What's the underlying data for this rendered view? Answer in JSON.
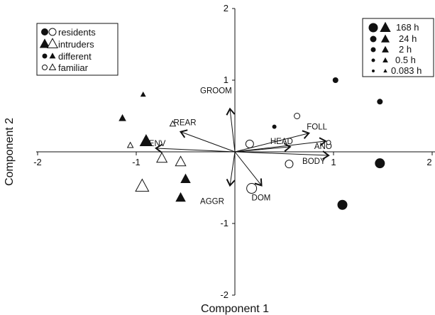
{
  "chart_data": {
    "type": "scatter",
    "title": "",
    "xlabel": "Component 1",
    "ylabel": "Component 2",
    "xlim": [
      -2,
      2
    ],
    "ylim": [
      -2,
      2
    ],
    "x_ticks": [
      -2,
      -1,
      1,
      2
    ],
    "y_ticks": [
      2,
      1,
      -1,
      -2
    ],
    "x_tick_labels": [
      "-2",
      "-1",
      "1",
      "2"
    ],
    "y_tick_labels": [
      "2",
      "1",
      "-1",
      "-2"
    ],
    "grid": false,
    "legends": {
      "group": {
        "position": "top-left",
        "entries": [
          {
            "label": "residents",
            "symbols": [
              "filled-circle",
              "open-circle"
            ]
          },
          {
            "label": "intruders",
            "symbols": [
              "filled-triangle",
              "open-triangle"
            ]
          },
          {
            "label": "different",
            "symbols": [
              "filled-circle",
              "filled-triangle"
            ]
          },
          {
            "label": "familiar",
            "symbols": [
              "open-circle",
              "open-triangle"
            ]
          }
        ]
      },
      "time": {
        "position": "top-right",
        "entries": [
          {
            "label": "168 h",
            "size": 5
          },
          {
            "label": "24 h",
            "size": 4
          },
          {
            "label": "2 h",
            "size": 3
          },
          {
            "label": "0.5 h",
            "size": 2
          },
          {
            "label": "0.083 h",
            "size": 1
          }
        ]
      }
    },
    "vectors": [
      {
        "name": "GROOM",
        "x": -0.05,
        "y": 0.6
      },
      {
        "name": "REAR",
        "x": -0.55,
        "y": 0.28
      },
      {
        "name": "ENV",
        "x": -0.8,
        "y": 0.05
      },
      {
        "name": "FOLL",
        "x": 0.75,
        "y": 0.26
      },
      {
        "name": "HEAD",
        "x": 0.56,
        "y": 0.07
      },
      {
        "name": "ANO",
        "x": 0.92,
        "y": 0.15
      },
      {
        "name": "BODY",
        "x": 0.95,
        "y": -0.05
      },
      {
        "name": "AGGR",
        "x": -0.05,
        "y": -0.47
      },
      {
        "name": "DOM",
        "x": 0.27,
        "y": -0.47
      }
    ],
    "points": [
      {
        "x": 1.02,
        "y": 1.0,
        "group": "residents",
        "condition": "different",
        "time": "2 h"
      },
      {
        "x": 1.47,
        "y": 0.7,
        "group": "residents",
        "condition": "different",
        "time": "2 h"
      },
      {
        "x": 1.47,
        "y": -0.16,
        "group": "residents",
        "condition": "different",
        "time": "168 h"
      },
      {
        "x": 1.09,
        "y": -0.74,
        "group": "residents",
        "condition": "different",
        "time": "168 h"
      },
      {
        "x": 0.4,
        "y": 0.35,
        "group": "residents",
        "condition": "different",
        "time": "0.5 h"
      },
      {
        "x": 0.63,
        "y": 0.5,
        "group": "residents",
        "condition": "familiar",
        "time": "2 h"
      },
      {
        "x": 0.95,
        "y": 0.13,
        "group": "residents",
        "condition": "familiar",
        "time": "0.5 h"
      },
      {
        "x": 0.15,
        "y": 0.11,
        "group": "residents",
        "condition": "familiar",
        "time": "24 h"
      },
      {
        "x": 0.55,
        "y": -0.17,
        "group": "residents",
        "condition": "familiar",
        "time": "24 h"
      },
      {
        "x": 0.17,
        "y": -0.51,
        "group": "residents",
        "condition": "familiar",
        "time": "168 h"
      },
      {
        "x": -0.93,
        "y": 0.8,
        "group": "intruders",
        "condition": "different",
        "time": "0.5 h"
      },
      {
        "x": -1.14,
        "y": 0.47,
        "group": "intruders",
        "condition": "different",
        "time": "2 h"
      },
      {
        "x": -0.9,
        "y": 0.15,
        "group": "intruders",
        "condition": "different",
        "time": "168 h"
      },
      {
        "x": -0.5,
        "y": -0.38,
        "group": "intruders",
        "condition": "different",
        "time": "24 h"
      },
      {
        "x": -0.55,
        "y": -0.64,
        "group": "intruders",
        "condition": "different",
        "time": "24 h"
      },
      {
        "x": -0.63,
        "y": 0.39,
        "group": "intruders",
        "condition": "familiar",
        "time": "0.5 h"
      },
      {
        "x": -1.06,
        "y": 0.09,
        "group": "intruders",
        "condition": "familiar",
        "time": "0.5 h"
      },
      {
        "x": -0.74,
        "y": -0.09,
        "group": "intruders",
        "condition": "familiar",
        "time": "24 h"
      },
      {
        "x": -0.55,
        "y": -0.14,
        "group": "intruders",
        "condition": "familiar",
        "time": "24 h"
      },
      {
        "x": -0.94,
        "y": -0.48,
        "group": "intruders",
        "condition": "familiar",
        "time": "168 h"
      }
    ]
  }
}
